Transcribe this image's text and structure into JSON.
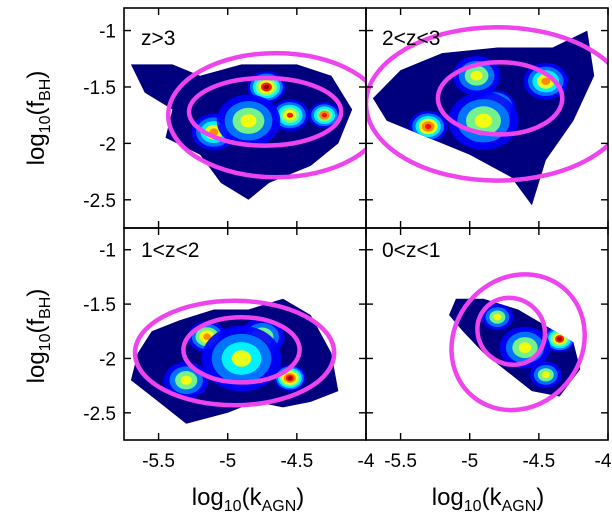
{
  "chart_data": {
    "type": "heatmap",
    "layout": "2x2 grid of panels sharing axes",
    "x_axis": {
      "label_base": "log",
      "label_base_sub": "10",
      "label_open": "(k",
      "label_sub": "AGN",
      "label_close": ")",
      "range": [
        -5.75,
        -4.0
      ],
      "ticks": [
        -5.5,
        -5,
        -4.5,
        -4
      ],
      "tick_labels": [
        "-5.5",
        "-5",
        "-4.5",
        "-4"
      ]
    },
    "y_axis": {
      "label_base": "log",
      "label_base_sub": "10",
      "label_open": "(f",
      "label_sub": "BH",
      "label_close": ")",
      "range": [
        -2.75,
        -0.8
      ],
      "ticks": [
        -1,
        -1.5,
        -2,
        -2.5
      ],
      "tick_labels": [
        "-1",
        "-1.5",
        "-2",
        "-2.5"
      ]
    },
    "colors": {
      "contour": "#ee44ee",
      "colormap": [
        "#00007f",
        "#0000ff",
        "#0080ff",
        "#00ffff",
        "#80ff80",
        "#ffff00",
        "#ff8000",
        "#ff0000",
        "#7f0000"
      ]
    },
    "panels": [
      {
        "label": "z>3",
        "region": [
          [
            -5.7,
            -1.3
          ],
          [
            -5.4,
            -1.3
          ],
          [
            -5.2,
            -1.4
          ],
          [
            -4.9,
            -1.3
          ],
          [
            -4.5,
            -1.3
          ],
          [
            -4.25,
            -1.4
          ],
          [
            -4.1,
            -1.7
          ],
          [
            -4.2,
            -2.0
          ],
          [
            -4.4,
            -2.2
          ],
          [
            -4.7,
            -2.35
          ],
          [
            -4.85,
            -2.5
          ],
          [
            -5.05,
            -2.35
          ],
          [
            -5.2,
            -2.1
          ],
          [
            -5.45,
            -1.95
          ],
          [
            -5.4,
            -1.7
          ],
          [
            -5.6,
            -1.55
          ]
        ],
        "hotspots": [
          {
            "x": -4.72,
            "y": -1.5,
            "level": 0.85,
            "spread": 0.12
          },
          {
            "x": -4.55,
            "y": -1.75,
            "level": 0.7,
            "spread": 0.12
          },
          {
            "x": -4.3,
            "y": -1.75,
            "level": 0.72,
            "spread": 0.1
          },
          {
            "x": -5.1,
            "y": -1.9,
            "level": 0.6,
            "spread": 0.14
          },
          {
            "x": -4.85,
            "y": -1.8,
            "level": 0.55,
            "spread": 0.2
          }
        ],
        "contours": [
          {
            "cx": -4.73,
            "cy": -1.72,
            "rx": 0.55,
            "ry": 0.3
          },
          {
            "cx": -4.65,
            "cy": -1.75,
            "rx": 0.78,
            "ry": 0.55
          }
        ]
      },
      {
        "label": "2<z<3",
        "region": [
          [
            -5.7,
            -1.6
          ],
          [
            -5.5,
            -1.35
          ],
          [
            -5.2,
            -1.2
          ],
          [
            -4.8,
            -1.15
          ],
          [
            -4.4,
            -1.15
          ],
          [
            -4.15,
            -1.0
          ],
          [
            -4.1,
            -1.4
          ],
          [
            -4.25,
            -1.8
          ],
          [
            -4.45,
            -2.15
          ],
          [
            -4.55,
            -2.55
          ],
          [
            -4.7,
            -2.3
          ],
          [
            -5.0,
            -2.1
          ],
          [
            -5.3,
            -1.95
          ],
          [
            -5.6,
            -1.8
          ]
        ],
        "hotspots": [
          {
            "x": -4.82,
            "y": -1.68,
            "level": 0.95,
            "spread": 0.13
          },
          {
            "x": -5.3,
            "y": -1.85,
            "level": 0.75,
            "spread": 0.12
          },
          {
            "x": -4.45,
            "y": -1.45,
            "level": 0.6,
            "spread": 0.14
          },
          {
            "x": -4.95,
            "y": -1.4,
            "level": 0.5,
            "spread": 0.15
          },
          {
            "x": -4.9,
            "y": -1.8,
            "level": 0.55,
            "spread": 0.22
          }
        ],
        "contours": [
          {
            "cx": -4.78,
            "cy": -1.6,
            "rx": 0.45,
            "ry": 0.32
          },
          {
            "cx": -4.8,
            "cy": -1.65,
            "rx": 0.95,
            "ry": 0.68
          }
        ]
      },
      {
        "label": "1<z<2",
        "region": [
          [
            -5.65,
            -1.95
          ],
          [
            -5.55,
            -1.75
          ],
          [
            -5.35,
            -1.65
          ],
          [
            -5.1,
            -1.55
          ],
          [
            -4.85,
            -1.55
          ],
          [
            -4.6,
            -1.45
          ],
          [
            -4.4,
            -1.6
          ],
          [
            -4.25,
            -1.95
          ],
          [
            -4.2,
            -2.3
          ],
          [
            -4.4,
            -2.4
          ],
          [
            -4.6,
            -2.45
          ],
          [
            -4.8,
            -2.4
          ],
          [
            -5.0,
            -2.5
          ],
          [
            -5.3,
            -2.6
          ],
          [
            -5.5,
            -2.4
          ],
          [
            -5.7,
            -2.2
          ]
        ],
        "hotspots": [
          {
            "x": -4.55,
            "y": -2.18,
            "level": 0.95,
            "spread": 0.1
          },
          {
            "x": -5.15,
            "y": -1.8,
            "level": 0.65,
            "spread": 0.12
          },
          {
            "x": -5.3,
            "y": -2.2,
            "level": 0.55,
            "spread": 0.14
          },
          {
            "x": -4.75,
            "y": -1.8,
            "level": 0.5,
            "spread": 0.14
          },
          {
            "x": -4.9,
            "y": -2.0,
            "level": 0.45,
            "spread": 0.25
          }
        ],
        "contours": [
          {
            "cx": -4.9,
            "cy": -1.92,
            "rx": 0.42,
            "ry": 0.3
          },
          {
            "cx": -4.95,
            "cy": -1.95,
            "rx": 0.72,
            "ry": 0.48
          }
        ]
      },
      {
        "label": "0<z<1",
        "region": [
          [
            -5.1,
            -1.45
          ],
          [
            -4.9,
            -1.45
          ],
          [
            -4.65,
            -1.55
          ],
          [
            -4.45,
            -1.7
          ],
          [
            -4.25,
            -1.85
          ],
          [
            -4.2,
            -2.1
          ],
          [
            -4.35,
            -2.35
          ],
          [
            -4.55,
            -2.3
          ],
          [
            -4.7,
            -2.15
          ],
          [
            -4.9,
            -1.95
          ],
          [
            -5.05,
            -1.75
          ],
          [
            -5.15,
            -1.6
          ]
        ],
        "hotspots": [
          {
            "x": -4.35,
            "y": -1.82,
            "level": 0.85,
            "spread": 0.1
          },
          {
            "x": -4.8,
            "y": -1.62,
            "level": 0.55,
            "spread": 0.1
          },
          {
            "x": -4.6,
            "y": -1.9,
            "level": 0.5,
            "spread": 0.16
          },
          {
            "x": -4.45,
            "y": -2.15,
            "level": 0.55,
            "spread": 0.1
          }
        ],
        "contours": [
          {
            "cx": -4.7,
            "cy": -1.75,
            "rx": 0.25,
            "ry": 0.3,
            "rot": 40
          },
          {
            "cx": -4.65,
            "cy": -1.85,
            "rx": 0.46,
            "ry": 0.65,
            "rot": 40
          }
        ]
      }
    ]
  }
}
